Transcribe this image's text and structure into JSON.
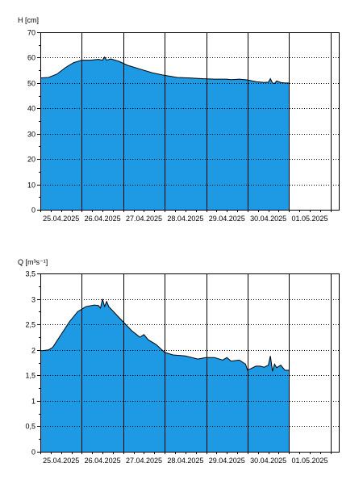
{
  "chart_data": [
    {
      "type": "area",
      "ylabel": "H [cm]",
      "ylim": [
        0,
        70
      ],
      "yticks": [
        "0",
        "10",
        "20",
        "30",
        "40",
        "50",
        "60",
        "70"
      ],
      "xlim": [
        0,
        7.2
      ],
      "xticks": [
        "25.04.2025",
        "26.04.2025",
        "27.04.2025",
        "28.04.2025",
        "29.04.2025",
        "30.04.2025",
        "01.05.2025"
      ],
      "grid": true,
      "fill_color": "#1e9ae5",
      "series": [
        {
          "x": [
            0,
            0.2,
            0.4,
            0.6,
            0.8,
            1.0,
            1.2,
            1.4,
            1.5,
            1.55,
            1.6,
            1.7,
            1.9,
            2.1,
            2.4,
            2.7,
            3.0,
            3.3,
            3.6,
            3.9,
            4.2,
            4.5,
            4.6,
            4.8,
            5.0,
            5.2,
            5.4,
            5.5,
            5.55,
            5.6,
            5.65,
            5.7,
            5.8,
            5.9,
            6.0
          ],
          "y": [
            52,
            52.2,
            53.5,
            56,
            58,
            59,
            59,
            59.3,
            59,
            60.2,
            59,
            59.5,
            58.5,
            57,
            55.5,
            54,
            53,
            52.2,
            52,
            51.7,
            51.5,
            51.5,
            51.3,
            51.5,
            51.2,
            50.5,
            50.2,
            50.3,
            51.7,
            50,
            49.8,
            50.8,
            50.2,
            50,
            50
          ]
        }
      ]
    },
    {
      "type": "area",
      "ylabel": "Q [m³s⁻¹]",
      "ylim": [
        0,
        3.5
      ],
      "yticks": [
        "0",
        "0,5",
        "1",
        "1,5",
        "2",
        "2,5",
        "3",
        "3,5"
      ],
      "xlim": [
        0,
        7.2
      ],
      "xticks": [
        "25.04.2025",
        "26.04.2025",
        "27.04.2025",
        "28.04.2025",
        "29.04.2025",
        "30.04.2025",
        "01.05.2025"
      ],
      "grid": true,
      "fill_color": "#1e9ae5",
      "series": [
        {
          "x": [
            0,
            0.2,
            0.3,
            0.5,
            0.7,
            0.9,
            1.1,
            1.3,
            1.4,
            1.45,
            1.5,
            1.55,
            1.6,
            1.65,
            1.8,
            2.0,
            2.2,
            2.4,
            2.5,
            2.6,
            2.8,
            3.0,
            3.2,
            3.5,
            3.8,
            4.0,
            4.2,
            4.4,
            4.5,
            4.6,
            4.8,
            4.95,
            5.0,
            5.2,
            5.3,
            5.4,
            5.5,
            5.55,
            5.6,
            5.65,
            5.7,
            5.8,
            5.9,
            6.0
          ],
          "y": [
            1.98,
            2.0,
            2.05,
            2.3,
            2.55,
            2.75,
            2.85,
            2.88,
            2.87,
            2.82,
            3.0,
            2.85,
            2.95,
            2.85,
            2.72,
            2.55,
            2.38,
            2.25,
            2.3,
            2.2,
            2.1,
            1.95,
            1.9,
            1.88,
            1.82,
            1.85,
            1.85,
            1.8,
            1.85,
            1.78,
            1.8,
            1.72,
            1.6,
            1.68,
            1.68,
            1.66,
            1.7,
            1.88,
            1.58,
            1.72,
            1.65,
            1.7,
            1.6,
            1.6
          ]
        }
      ]
    }
  ]
}
